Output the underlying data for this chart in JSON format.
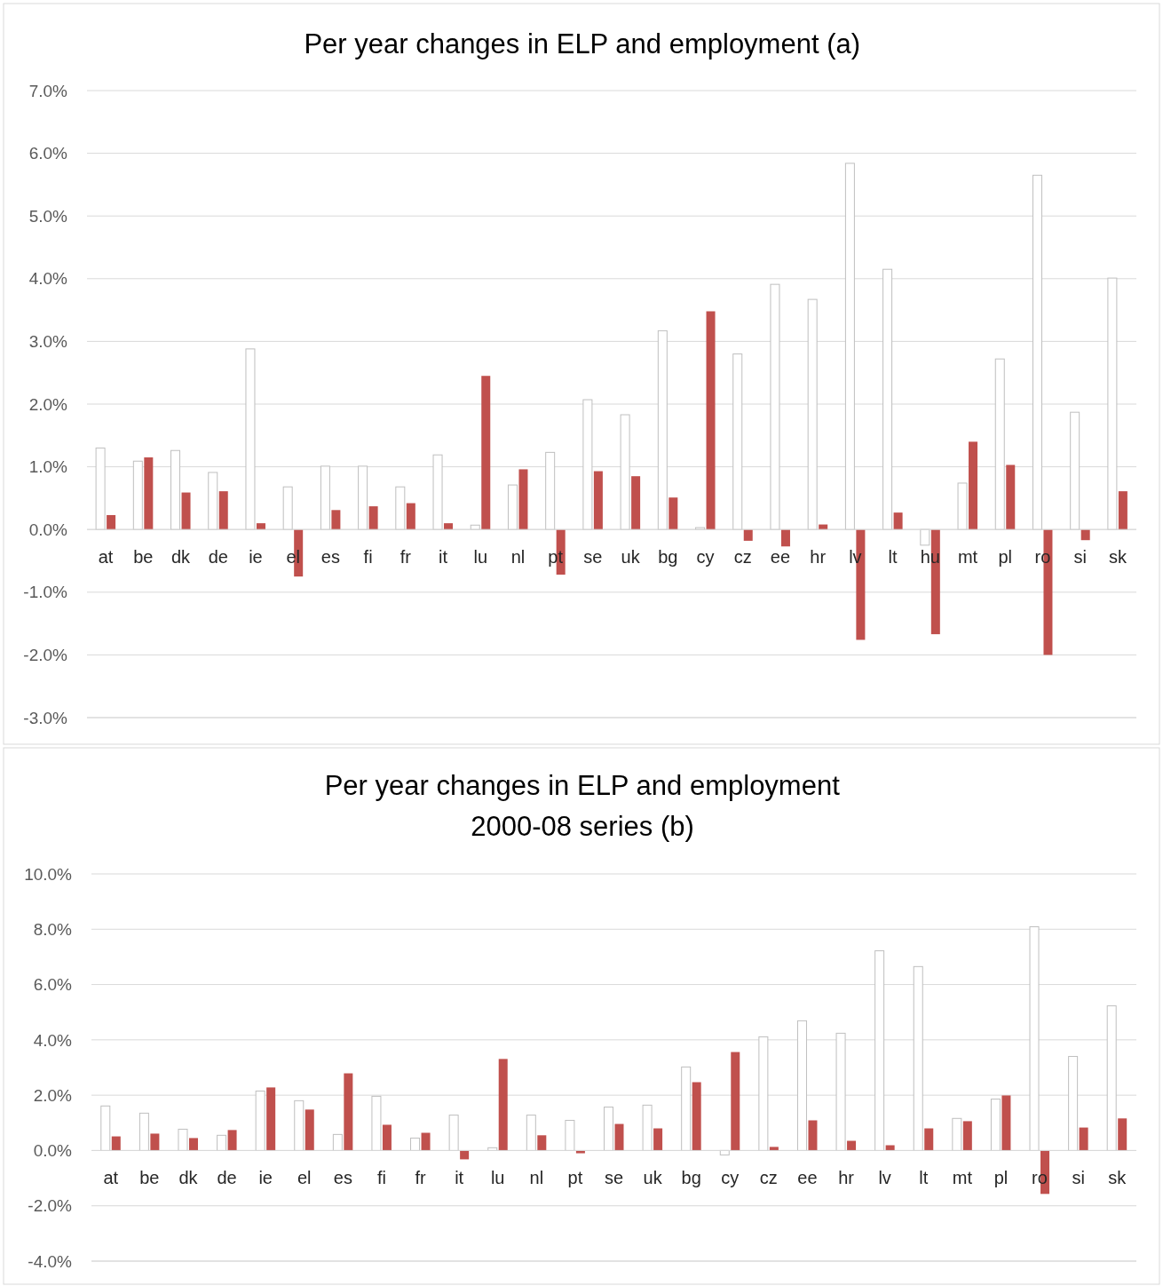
{
  "chart_data": [
    {
      "type": "bar",
      "title": "Per year changes in ELP and employment (a)",
      "categories": [
        "at",
        "be",
        "dk",
        "de",
        "ie",
        "el",
        "es",
        "fi",
        "fr",
        "it",
        "lu",
        "nl",
        "pt",
        "se",
        "uk",
        "bg",
        "cy",
        "cz",
        "ee",
        "hr",
        "lv",
        "lt",
        "hu",
        "mt",
        "pl",
        "ro",
        "si",
        "sk"
      ],
      "series": [
        {
          "color": "#ffffff",
          "values": [
            1.3,
            1.09,
            1.26,
            0.91,
            2.88,
            0.68,
            1.01,
            1.01,
            0.68,
            1.19,
            0.07,
            0.71,
            1.23,
            2.07,
            1.83,
            3.17,
            0.03,
            2.8,
            3.91,
            3.67,
            5.84,
            4.15,
            -0.25,
            0.74,
            2.72,
            5.65,
            1.87,
            4.01
          ]
        },
        {
          "color": "#c0504d",
          "values": [
            0.23,
            1.15,
            0.59,
            0.61,
            0.1,
            -0.75,
            0.31,
            0.37,
            0.42,
            0.1,
            2.45,
            0.96,
            -0.72,
            0.93,
            0.85,
            0.51,
            3.48,
            -0.18,
            -0.27,
            0.08,
            -1.76,
            0.27,
            -1.67,
            1.4,
            1.03,
            -2.0,
            -0.17,
            0.61
          ]
        }
      ],
      "ylim": [
        -3,
        7
      ],
      "yticks": [
        {
          "value": -3,
          "label": "-3.0%"
        },
        {
          "value": -2,
          "label": "-2.0%"
        },
        {
          "value": -1,
          "label": "-1.0%"
        },
        {
          "value": 0,
          "label": "0.0%"
        },
        {
          "value": 1,
          "label": "1.0%"
        },
        {
          "value": 2,
          "label": "2.0%"
        },
        {
          "value": 3,
          "label": "3.0%"
        },
        {
          "value": 4,
          "label": "4.0%"
        },
        {
          "value": 5,
          "label": "5.0%"
        },
        {
          "value": 6,
          "label": "6.0%"
        },
        {
          "value": 7,
          "label": "7.0%"
        }
      ],
      "grid": "y"
    },
    {
      "type": "bar",
      "title": "Per year changes in ELP and employment",
      "subtitle": "2000-08 series (b)",
      "categories": [
        "at",
        "be",
        "dk",
        "de",
        "ie",
        "el",
        "es",
        "fi",
        "fr",
        "it",
        "lu",
        "nl",
        "pt",
        "se",
        "uk",
        "bg",
        "cy",
        "cz",
        "ee",
        "hr",
        "lv",
        "lt",
        "mt",
        "pl",
        "ro",
        "si",
        "sk"
      ],
      "series": [
        {
          "color": "#ffffff",
          "values": [
            1.61,
            1.35,
            0.77,
            0.55,
            2.15,
            1.8,
            0.58,
            1.96,
            0.45,
            1.28,
            0.1,
            1.28,
            1.09,
            1.57,
            1.64,
            3.02,
            -0.16,
            4.11,
            4.69,
            4.24,
            7.22,
            6.65,
            1.16,
            1.86,
            8.09,
            3.4,
            5.23
          ]
        },
        {
          "color": "#c0504d",
          "values": [
            0.51,
            0.61,
            0.45,
            0.74,
            2.28,
            1.48,
            2.79,
            0.93,
            0.64,
            -0.32,
            3.31,
            0.55,
            -0.1,
            0.96,
            0.8,
            2.47,
            3.56,
            0.13,
            1.09,
            0.35,
            0.19,
            0.8,
            1.06,
            1.99,
            -1.57,
            0.83,
            1.16
          ]
        }
      ],
      "ylim": [
        -4,
        10
      ],
      "yticks": [
        {
          "value": -4,
          "label": "-4.0%"
        },
        {
          "value": -2,
          "label": "-2.0%"
        },
        {
          "value": 0,
          "label": "0.0%"
        },
        {
          "value": 2,
          "label": "2.0%"
        },
        {
          "value": 4,
          "label": "4.0%"
        },
        {
          "value": 6,
          "label": "6.0%"
        },
        {
          "value": 8,
          "label": "8.0%"
        },
        {
          "value": 10,
          "label": "10.0%"
        }
      ],
      "grid": "y"
    }
  ]
}
